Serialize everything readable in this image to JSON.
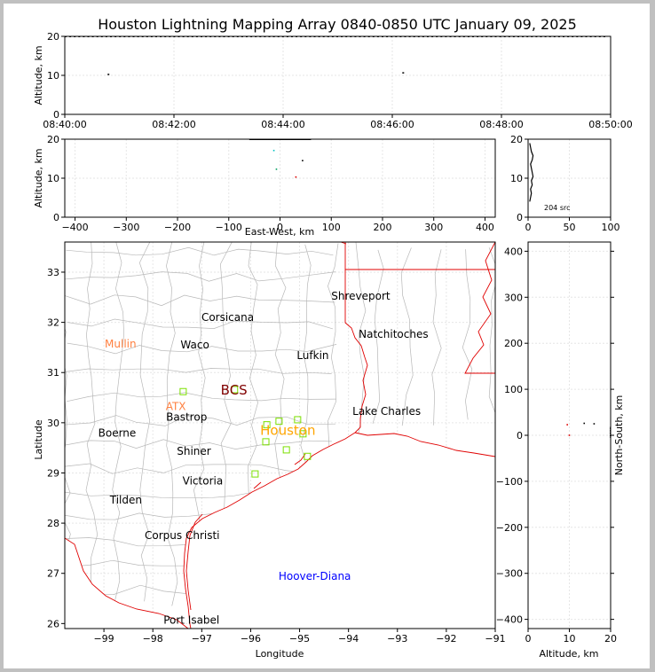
{
  "title": "Houston Lightning Mapping Array 0840-0850 UTC January 09, 2025",
  "colors": {
    "state_border": "#e00000",
    "county_border": "#b8b8b8",
    "network_station": "#7ce000",
    "grid": "#e6e6e6"
  },
  "panels": {
    "time_altitude": {
      "ylabel": "Altitude, km",
      "ylim": [
        0,
        20
      ],
      "yticks": [
        "0",
        "10",
        "20"
      ],
      "xticks": [
        "08:40:00",
        "08:42:00",
        "08:44:00",
        "08:46:00",
        "08:48:00",
        "08:50:00"
      ]
    },
    "ew_altitude": {
      "ylabel": "Altitude, km",
      "xlabel": "East-West, km",
      "xlim": [
        -420,
        420
      ],
      "ylim": [
        0,
        20
      ],
      "xticks": [
        "−400",
        "−300",
        "−200",
        "−100",
        "0",
        "100",
        "200",
        "300",
        "400"
      ],
      "yticks": [
        "0",
        "10",
        "20"
      ]
    },
    "alt_histogram": {
      "xlim": [
        0,
        100
      ],
      "ylim": [
        0,
        20
      ],
      "xticks": [
        "0",
        "50",
        "100"
      ],
      "yticks": [
        "0",
        "10",
        "20"
      ],
      "annotation": "204 src"
    },
    "plan_view": {
      "xlabel": "Longitude",
      "ylabel": "Latitude",
      "xlim": [
        -99.8,
        -91.0
      ],
      "ylim": [
        25.9,
        33.6
      ],
      "xticks": [
        "−99",
        "−98",
        "−97",
        "−96",
        "−95",
        "−94",
        "−93",
        "−92",
        "−91"
      ],
      "yticks": [
        "26",
        "27",
        "28",
        "29",
        "30",
        "31",
        "32",
        "33"
      ]
    },
    "ns_altitude": {
      "xlabel": "Altitude, km",
      "ylabel": "North-South, km",
      "xlim": [
        0,
        20
      ],
      "ylim": [
        -420,
        420
      ],
      "xticks": [
        "0",
        "10",
        "20"
      ],
      "yticks": [
        "−400",
        "−300",
        "−200",
        "−100",
        "0",
        "100",
        "200",
        "300",
        "400"
      ]
    }
  },
  "cities": [
    {
      "name": "Shreveport",
      "lon": -93.75,
      "lat": 32.52,
      "color": "#000000"
    },
    {
      "name": "Corsicana",
      "lon": -96.47,
      "lat": 32.1,
      "color": "#000000"
    },
    {
      "name": "Natchitoches",
      "lon": -93.08,
      "lat": 31.76,
      "color": "#000000"
    },
    {
      "name": "Mullin",
      "lon": -98.66,
      "lat": 31.57,
      "color": "#ff8040"
    },
    {
      "name": "Waco",
      "lon": -97.14,
      "lat": 31.55,
      "color": "#000000"
    },
    {
      "name": "Lufkin",
      "lon": -94.73,
      "lat": 31.34,
      "color": "#000000"
    },
    {
      "name": "BCS",
      "lon": -96.34,
      "lat": 30.63,
      "color": "#800000",
      "big": true
    },
    {
      "name": "ATX",
      "lon": -97.53,
      "lat": 30.32,
      "color": "#ff8040"
    },
    {
      "name": "Bastrop",
      "lon": -97.31,
      "lat": 30.11,
      "color": "#000000"
    },
    {
      "name": "Lake Charles",
      "lon": -93.22,
      "lat": 30.23,
      "color": "#000000"
    },
    {
      "name": "Houston",
      "lon": -95.24,
      "lat": 29.83,
      "color": "#ffa500",
      "big": true
    },
    {
      "name": "Boerne",
      "lon": -98.73,
      "lat": 29.79,
      "color": "#000000"
    },
    {
      "name": "Shiner",
      "lon": -97.16,
      "lat": 29.43,
      "color": "#000000"
    },
    {
      "name": "Victoria",
      "lon": -96.98,
      "lat": 28.84,
      "color": "#000000"
    },
    {
      "name": "Tilden",
      "lon": -98.55,
      "lat": 28.46,
      "color": "#000000"
    },
    {
      "name": "Corpus Christi",
      "lon": -97.4,
      "lat": 27.75,
      "color": "#000000"
    },
    {
      "name": "Hoover-Diana",
      "lon": -94.69,
      "lat": 26.94,
      "color": "#0000ff"
    },
    {
      "name": "Port Isabel",
      "lon": -97.21,
      "lat": 26.07,
      "color": "#000000"
    }
  ],
  "stations": [
    {
      "lon": -97.38,
      "lat": 30.62
    },
    {
      "lon": -96.33,
      "lat": 30.66
    },
    {
      "lon": -95.67,
      "lat": 29.96
    },
    {
      "lon": -95.42,
      "lat": 30.03
    },
    {
      "lon": -95.04,
      "lat": 30.06
    },
    {
      "lon": -95.69,
      "lat": 29.62
    },
    {
      "lon": -94.93,
      "lat": 29.78
    },
    {
      "lon": -95.27,
      "lat": 29.46
    },
    {
      "lon": -94.84,
      "lat": 29.33
    },
    {
      "lon": -95.91,
      "lat": 28.98
    }
  ],
  "sources_time": [
    {
      "t": 0.8,
      "alt": 10.3
    },
    {
      "t": 6.2,
      "alt": 10.7
    }
  ],
  "sources_ew": [
    {
      "x": -12,
      "alt": 17.1,
      "color": "#00c0c0"
    },
    {
      "x": -7,
      "alt": 12.3,
      "color": "#00a060"
    },
    {
      "x": 31,
      "alt": 10.3,
      "color": "#e00000"
    },
    {
      "x": 44,
      "alt": 14.5,
      "color": "#000000"
    }
  ],
  "sources_ns": [
    {
      "alt": 9.5,
      "y": 23,
      "color": "#e00000"
    },
    {
      "alt": 13.6,
      "y": 26,
      "color": "#000000"
    },
    {
      "alt": 10.0,
      "y": 0,
      "color": "#e00000"
    },
    {
      "alt": 16.0,
      "y": 25,
      "color": "#000000"
    }
  ]
}
